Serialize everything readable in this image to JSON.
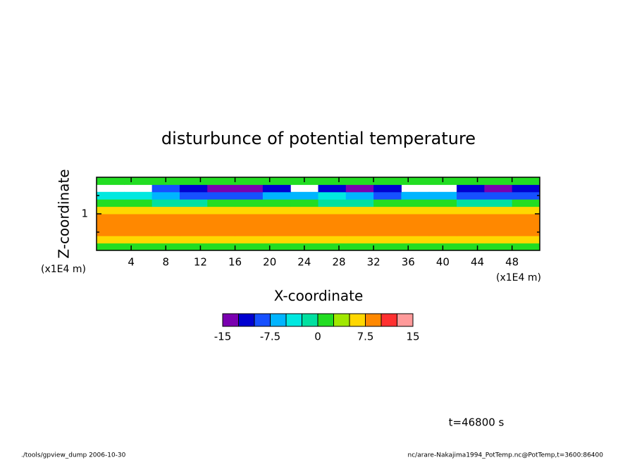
{
  "chart_data": {
    "type": "contour",
    "title": "disturbunce of potential temperature",
    "xlabel": "X-coordinate",
    "ylabel": "Z-coordinate",
    "x_unit": "(x1E4 m)",
    "y_unit": "(x1E4 m)",
    "xlim": [
      0,
      51.2
    ],
    "ylim": [
      0,
      2
    ],
    "xticks": [
      4,
      8,
      12,
      16,
      20,
      24,
      28,
      32,
      36,
      40,
      44,
      48
    ],
    "yticks": [
      1
    ],
    "yminor": [
      0.5,
      1.5
    ],
    "z": [
      [
        2,
        2,
        2,
        2,
        2,
        2,
        2,
        2,
        2,
        2,
        2,
        2,
        2,
        2,
        2,
        2
      ],
      [
        6,
        6,
        6,
        6,
        6,
        6,
        6,
        6,
        6,
        6,
        6,
        6,
        6,
        6,
        6,
        6
      ],
      [
        8,
        8,
        8,
        8,
        8,
        8,
        8,
        8,
        8,
        8,
        8,
        8,
        8,
        8,
        8,
        8
      ],
      [
        8,
        8,
        8,
        8,
        8,
        8,
        8,
        8,
        8,
        8,
        8,
        8,
        8,
        8,
        8,
        8
      ],
      [
        8,
        8,
        8,
        8,
        8,
        8,
        8,
        8,
        8,
        8,
        8,
        8,
        8,
        8,
        8,
        8
      ],
      [
        6,
        6,
        6,
        6,
        6,
        6,
        6,
        6,
        6,
        6,
        6,
        6,
        6,
        6,
        6,
        6
      ],
      [
        2,
        2,
        -1,
        -1,
        2,
        2,
        2,
        2,
        -1,
        -1,
        2,
        2,
        2,
        -1,
        -1,
        2
      ],
      [
        -5,
        -5,
        -6,
        -8,
        -10,
        -10,
        -6,
        -6,
        -5,
        -6,
        -8,
        -6,
        -6,
        -8,
        -10,
        -8
      ],
      [
        null,
        null,
        -8,
        -12,
        -14,
        -14,
        -12,
        null,
        -12,
        -14,
        -12,
        null,
        null,
        -12,
        -14,
        -12
      ],
      [
        2,
        2,
        2,
        2,
        2,
        2,
        2,
        2,
        2,
        2,
        2,
        2,
        2,
        2,
        2,
        2
      ]
    ],
    "levels": [
      -15,
      -12.5,
      -10,
      -7.5,
      -5,
      -2.5,
      0,
      2.5,
      5,
      7.5,
      10,
      12.5,
      15
    ],
    "colors": [
      "#7a00b0",
      "#0000d0",
      "#1650ff",
      "#00b4ff",
      "#00e8e0",
      "#00e0a0",
      "#22dd22",
      "#a0e800",
      "#ffd700",
      "#ff8800",
      "#ff3030",
      "#ff9a9a"
    ],
    "colorbar_ticks": [
      -15,
      -7.5,
      0,
      7.5,
      15
    ],
    "annotation": "t=46800 s",
    "footer_left": "./tools/gpview_dump  2006-10-30",
    "footer_right": "nc/arare-Nakajima1994_PotTemp.nc@PotTemp,t=3600:86400"
  }
}
